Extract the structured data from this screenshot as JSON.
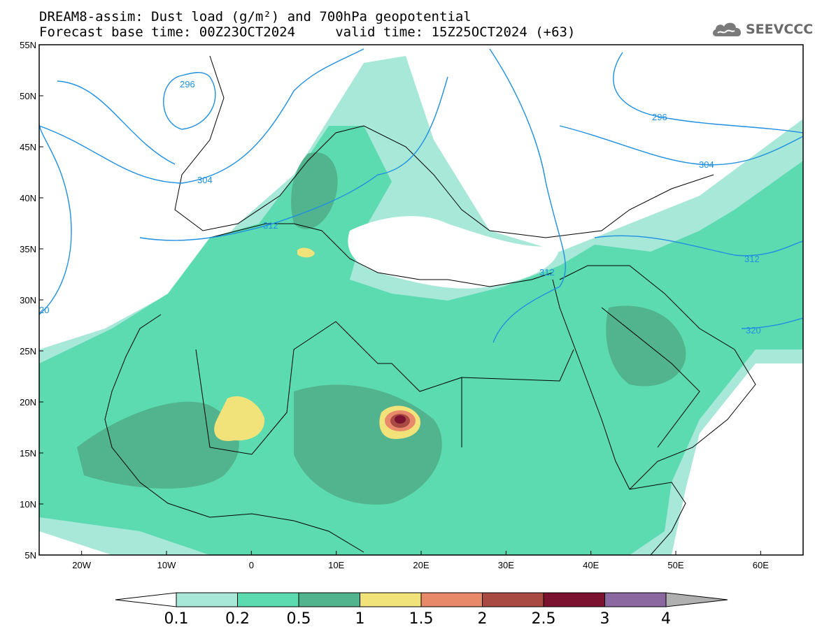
{
  "title": {
    "line1": "DREAM8-assim: Dust load (g/m²) and 700hPa geopotential",
    "line2": "Forecast base time: 00Z23OCT2024     valid time: 15Z25OCT2024 (+63)"
  },
  "logo": {
    "text": "SEEVCCC",
    "icon": "cloud-icon"
  },
  "map": {
    "lat_range": [
      5,
      55
    ],
    "lon_range": [
      -25,
      65
    ],
    "lat_ticks": [
      "55N",
      "50N",
      "45N",
      "40N",
      "35N",
      "30N",
      "25N",
      "20N",
      "15N",
      "10N",
      "5N"
    ],
    "lon_ticks": [
      "20W",
      "10W",
      "0",
      "10E",
      "20E",
      "30E",
      "40E",
      "50E",
      "60E"
    ],
    "contour_labels": [
      "296",
      "304",
      "312",
      "20",
      "296",
      "304",
      "312",
      "320",
      "312"
    ],
    "contour_color": "#1f8fe0"
  },
  "colorbar": {
    "labels": [
      "0.1",
      "0.2",
      "0.5",
      "1",
      "1.5",
      "2",
      "2.5",
      "3",
      "4"
    ],
    "colors": [
      "#a8e8d8",
      "#5ddbb0",
      "#52b48e",
      "#f2e27a",
      "#e88a6a",
      "#a84a42",
      "#7a1230",
      "#8c68a0",
      "#b0b0b0"
    ]
  }
}
